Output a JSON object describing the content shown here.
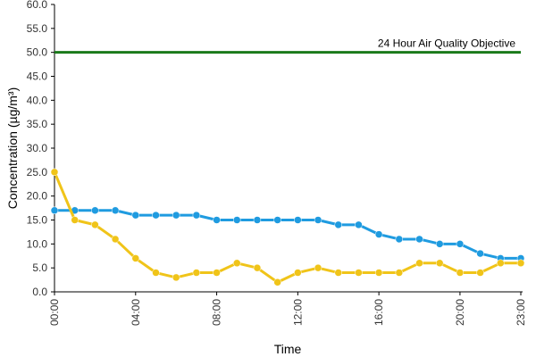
{
  "chart_data": {
    "type": "line",
    "xlabel": "Time",
    "ylabel": "Concentration (µg/m³)",
    "ylim": [
      0,
      60
    ],
    "yticks": [
      "0.0",
      "5.0",
      "10.0",
      "15.0",
      "20.0",
      "25.0",
      "30.0",
      "35.0",
      "40.0",
      "45.0",
      "50.0",
      "55.0",
      "60.0"
    ],
    "x": [
      "00:00",
      "01:00",
      "02:00",
      "03:00",
      "04:00",
      "05:00",
      "06:00",
      "07:00",
      "08:00",
      "09:00",
      "10:00",
      "11:00",
      "12:00",
      "13:00",
      "14:00",
      "15:00",
      "16:00",
      "17:00",
      "18:00",
      "19:00",
      "20:00",
      "21:00",
      "22:00",
      "23:00"
    ],
    "xtick_labels": [
      "00:00",
      "04:00",
      "08:00",
      "12:00",
      "16:00",
      "20:00",
      "23:00"
    ],
    "grid": false,
    "series": [
      {
        "color": "#1f9be0",
        "values": [
          17,
          17,
          17,
          17,
          16,
          16,
          16,
          16,
          15,
          15,
          15,
          15,
          15,
          15,
          14,
          14,
          12,
          11,
          11,
          10,
          10,
          8,
          7,
          7
        ]
      },
      {
        "color": "#f0c419",
        "values": [
          25,
          15,
          14,
          11,
          7,
          4,
          3,
          4,
          4,
          6,
          5,
          2,
          4,
          5,
          4,
          4,
          4,
          4,
          6,
          6,
          4,
          4,
          6,
          6
        ]
      }
    ],
    "reference_line": {
      "value": 50,
      "label": "24 Hour Air Quality Objective",
      "color": "#1a7a1a"
    }
  }
}
